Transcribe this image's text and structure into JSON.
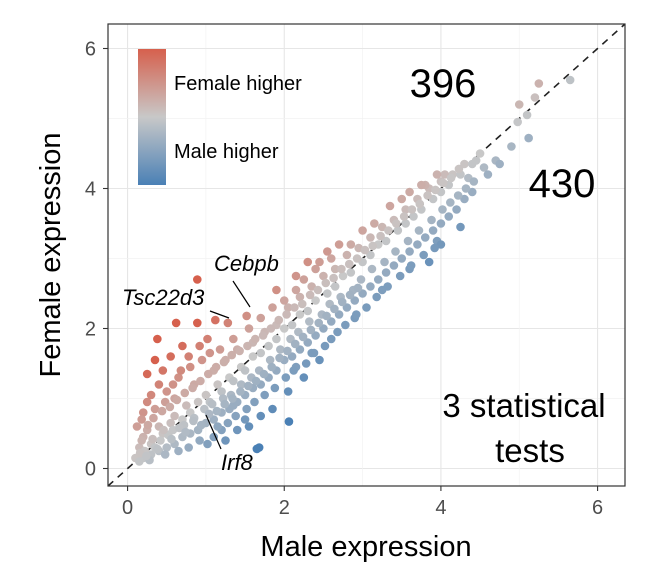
{
  "chart_data": {
    "type": "scatter",
    "title": "",
    "xlabel": "Male expression",
    "ylabel": "Female expression",
    "xlim": [
      -0.25,
      6.35
    ],
    "ylim": [
      -0.25,
      6.35
    ],
    "x_ticks": [
      "0",
      "2",
      "4",
      "6"
    ],
    "y_ticks": [
      "0",
      "2",
      "4",
      "6"
    ],
    "grid": true,
    "reference_line": "y = x (dashed)",
    "legend": {
      "position": "top-left",
      "type": "color-gradient",
      "high_label": "Female higher",
      "low_label": "Male higher",
      "high_color": "#d6604d",
      "mid_color": "#c8c8c8",
      "low_color": "#4a80b5"
    },
    "annotations": {
      "female_higher_count": "396",
      "male_higher_count": "430",
      "note": [
        "3 statistical",
        "tests"
      ]
    },
    "labeled_genes": [
      {
        "name": "Cebpb",
        "x": 1.52,
        "y": 2.18
      },
      {
        "name": "Tsc22d3",
        "x": 1.28,
        "y": 2.08
      },
      {
        "name": "Irf8",
        "x": 1.02,
        "y": 0.75
      }
    ],
    "points": [
      [
        0.89,
        2.7
      ],
      [
        0.62,
        2.08
      ],
      [
        0.89,
        2.08
      ],
      [
        1.12,
        2.12
      ],
      [
        1.52,
        2.18
      ],
      [
        1.28,
        2.08
      ],
      [
        0.38,
        1.85
      ],
      [
        0.35,
        1.55
      ],
      [
        0.25,
        1.35
      ],
      [
        0.45,
        1.4
      ],
      [
        0.55,
        1.6
      ],
      [
        0.7,
        1.75
      ],
      [
        0.3,
        1.05
      ],
      [
        0.5,
        1.1
      ],
      [
        0.65,
        1.3
      ],
      [
        0.8,
        1.45
      ],
      [
        0.95,
        1.55
      ],
      [
        1.05,
        1.65
      ],
      [
        0.2,
        0.8
      ],
      [
        0.35,
        0.85
      ],
      [
        0.6,
        1.0
      ],
      [
        0.85,
        1.2
      ],
      [
        1.1,
        1.4
      ],
      [
        1.25,
        1.55
      ],
      [
        1.4,
        1.7
      ],
      [
        1.6,
        1.8
      ],
      [
        1.75,
        1.95
      ],
      [
        1.9,
        2.05
      ],
      [
        2.05,
        2.3
      ],
      [
        2.2,
        2.45
      ],
      [
        2.35,
        2.6
      ],
      [
        2.5,
        2.75
      ],
      [
        2.65,
        2.85
      ],
      [
        2.8,
        3.05
      ],
      [
        2.95,
        3.15
      ],
      [
        3.1,
        3.3
      ],
      [
        3.25,
        3.45
      ],
      [
        3.4,
        3.55
      ],
      [
        3.55,
        3.7
      ],
      [
        3.7,
        3.85
      ],
      [
        3.85,
        4.0
      ],
      [
        4.0,
        4.1
      ],
      [
        4.15,
        4.2
      ],
      [
        4.3,
        4.35
      ],
      [
        4.45,
        4.4
      ],
      [
        1.9,
        2.55
      ],
      [
        2.15,
        2.75
      ],
      [
        2.4,
        2.85
      ],
      [
        2.7,
        3.2
      ],
      [
        3.0,
        3.4
      ],
      [
        3.35,
        3.75
      ],
      [
        3.6,
        3.95
      ],
      [
        3.8,
        4.05
      ],
      [
        4.05,
        4.2
      ],
      [
        3.95,
        4.2
      ],
      [
        2.3,
        2.95
      ],
      [
        2.55,
        3.1
      ],
      [
        0.15,
        0.3
      ],
      [
        0.2,
        0.45
      ],
      [
        0.25,
        0.55
      ],
      [
        0.3,
        0.35
      ],
      [
        0.4,
        0.6
      ],
      [
        0.45,
        0.5
      ],
      [
        0.55,
        0.65
      ],
      [
        0.6,
        0.75
      ],
      [
        0.7,
        0.7
      ],
      [
        0.75,
        0.9
      ],
      [
        0.8,
        0.8
      ],
      [
        0.9,
        0.95
      ],
      [
        1.0,
        1.05
      ],
      [
        1.05,
        0.95
      ],
      [
        1.15,
        1.2
      ],
      [
        1.2,
        1.1
      ],
      [
        1.3,
        1.3
      ],
      [
        1.35,
        1.25
      ],
      [
        1.45,
        1.45
      ],
      [
        1.5,
        1.4
      ],
      [
        1.6,
        1.6
      ],
      [
        1.7,
        1.65
      ],
      [
        1.8,
        1.75
      ],
      [
        1.9,
        1.85
      ],
      [
        2.0,
        2.0
      ],
      [
        2.1,
        2.05
      ],
      [
        2.2,
        2.2
      ],
      [
        2.3,
        2.25
      ],
      [
        2.4,
        2.4
      ],
      [
        2.55,
        2.5
      ],
      [
        2.65,
        2.6
      ],
      [
        2.75,
        2.75
      ],
      [
        2.85,
        2.8
      ],
      [
        3.0,
        2.95
      ],
      [
        3.1,
        3.05
      ],
      [
        3.2,
        3.2
      ],
      [
        3.3,
        3.25
      ],
      [
        3.45,
        3.4
      ],
      [
        3.55,
        3.5
      ],
      [
        3.65,
        3.6
      ],
      [
        3.75,
        3.7
      ],
      [
        3.9,
        3.85
      ],
      [
        4.0,
        3.95
      ],
      [
        4.1,
        4.05
      ],
      [
        4.25,
        4.2
      ],
      [
        4.4,
        4.35
      ],
      [
        4.55,
        4.3
      ],
      [
        4.7,
        4.4
      ],
      [
        4.35,
        4.15
      ],
      [
        4.6,
        4.2
      ],
      [
        0.2,
        0.15
      ],
      [
        0.3,
        0.2
      ],
      [
        0.4,
        0.25
      ],
      [
        0.5,
        0.3
      ],
      [
        0.6,
        0.35
      ],
      [
        0.7,
        0.45
      ],
      [
        0.8,
        0.5
      ],
      [
        0.9,
        0.55
      ],
      [
        1.0,
        0.65
      ],
      [
        1.1,
        0.7
      ],
      [
        1.2,
        0.8
      ],
      [
        1.3,
        0.85
      ],
      [
        1.4,
        0.95
      ],
      [
        1.5,
        1.05
      ],
      [
        1.6,
        1.15
      ],
      [
        1.7,
        1.2
      ],
      [
        1.8,
        1.3
      ],
      [
        1.9,
        1.4
      ],
      [
        2.0,
        1.55
      ],
      [
        2.1,
        1.6
      ],
      [
        2.2,
        1.7
      ],
      [
        2.3,
        1.8
      ],
      [
        2.4,
        1.9
      ],
      [
        2.5,
        2.0
      ],
      [
        2.6,
        2.1
      ],
      [
        2.7,
        2.2
      ],
      [
        2.8,
        2.3
      ],
      [
        2.9,
        2.4
      ],
      [
        3.0,
        2.5
      ],
      [
        3.1,
        2.6
      ],
      [
        3.2,
        2.7
      ],
      [
        3.3,
        2.8
      ],
      [
        3.4,
        2.9
      ],
      [
        3.5,
        3.0
      ],
      [
        3.6,
        3.1
      ],
      [
        3.7,
        3.2
      ],
      [
        3.8,
        3.3
      ],
      [
        3.9,
        3.4
      ],
      [
        4.0,
        3.5
      ],
      [
        4.1,
        3.6
      ],
      [
        4.2,
        3.7
      ],
      [
        4.3,
        3.85
      ],
      [
        4.4,
        3.95
      ],
      [
        1.1,
        0.45
      ],
      [
        1.25,
        0.4
      ],
      [
        1.4,
        0.55
      ],
      [
        1.55,
        0.6
      ],
      [
        1.7,
        0.75
      ],
      [
        1.85,
        0.85
      ],
      [
        2.05,
        1.1
      ],
      [
        2.25,
        1.3
      ],
      [
        2.45,
        1.55
      ],
      [
        1.65,
        0.28
      ],
      [
        1.68,
        0.3
      ],
      [
        2.06,
        0.67
      ],
      [
        1.35,
        0.9
      ],
      [
        1.5,
        0.7
      ],
      [
        1.2,
        0.55
      ],
      [
        2.15,
        1.45
      ],
      [
        2.35,
        1.65
      ],
      [
        2.6,
        1.85
      ],
      [
        2.9,
        2.15
      ],
      [
        3.25,
        2.55
      ],
      [
        3.6,
        2.85
      ],
      [
        3.95,
        3.25
      ],
      [
        4.25,
        3.45
      ],
      [
        3.85,
        2.95
      ],
      [
        4.0,
        3.2
      ],
      [
        0.12,
        0.6
      ],
      [
        0.18,
        0.7
      ],
      [
        0.25,
        0.95
      ],
      [
        0.4,
        1.2
      ],
      [
        0.48,
        0.95
      ],
      [
        0.58,
        1.2
      ],
      [
        0.68,
        1.4
      ],
      [
        0.78,
        1.6
      ],
      [
        0.92,
        1.75
      ],
      [
        1.02,
        1.85
      ],
      [
        1.18,
        1.7
      ],
      [
        1.35,
        1.85
      ],
      [
        1.55,
        2.0
      ],
      [
        1.7,
        2.15
      ],
      [
        1.85,
        2.3
      ],
      [
        2.0,
        2.4
      ],
      [
        2.15,
        2.55
      ],
      [
        2.25,
        2.7
      ],
      [
        2.45,
        2.95
      ],
      [
        2.6,
        3.0
      ],
      [
        2.85,
        3.2
      ],
      [
        3.15,
        3.5
      ],
      [
        3.5,
        3.85
      ],
      [
        3.75,
        4.05
      ],
      [
        4.5,
        4.5
      ],
      [
        4.75,
        4.35
      ],
      [
        4.9,
        4.6
      ],
      [
        5.0,
        5.2
      ],
      [
        5.1,
        5.05
      ],
      [
        4.98,
        4.95
      ],
      [
        5.12,
        4.72
      ],
      [
        5.25,
        5.5
      ],
      [
        5.65,
        5.55
      ],
      [
        5.2,
        5.3
      ],
      [
        0.1,
        0.15
      ],
      [
        0.15,
        0.1
      ],
      [
        0.22,
        0.25
      ],
      [
        0.28,
        0.12
      ],
      [
        0.35,
        0.3
      ],
      [
        0.42,
        0.4
      ],
      [
        0.48,
        0.2
      ],
      [
        0.52,
        0.48
      ],
      [
        0.58,
        0.55
      ],
      [
        0.65,
        0.25
      ],
      [
        0.72,
        0.62
      ],
      [
        0.78,
        0.3
      ],
      [
        0.85,
        0.72
      ],
      [
        0.92,
        0.4
      ],
      [
        0.98,
        0.85
      ],
      [
        1.02,
        0.35
      ],
      [
        1.08,
        0.92
      ],
      [
        1.15,
        0.6
      ],
      [
        1.22,
        1.0
      ],
      [
        1.28,
        0.65
      ],
      [
        1.32,
        1.05
      ],
      [
        1.38,
        0.75
      ],
      [
        1.45,
        1.2
      ],
      [
        1.52,
        0.85
      ],
      [
        1.58,
        1.3
      ],
      [
        1.62,
        0.95
      ],
      [
        1.68,
        1.4
      ],
      [
        1.75,
        1.05
      ],
      [
        1.82,
        1.55
      ],
      [
        1.88,
        1.15
      ],
      [
        1.95,
        1.7
      ],
      [
        2.02,
        1.3
      ],
      [
        2.08,
        1.85
      ],
      [
        2.12,
        1.4
      ],
      [
        2.18,
        1.95
      ],
      [
        2.28,
        1.5
      ],
      [
        2.32,
        2.1
      ],
      [
        2.38,
        1.65
      ],
      [
        2.48,
        2.2
      ],
      [
        2.52,
        1.75
      ],
      [
        2.58,
        2.35
      ],
      [
        2.68,
        1.95
      ],
      [
        2.72,
        2.45
      ],
      [
        2.78,
        2.05
      ],
      [
        2.88,
        2.55
      ],
      [
        2.92,
        2.2
      ],
      [
        2.98,
        2.7
      ],
      [
        3.05,
        2.3
      ],
      [
        3.12,
        2.85
      ],
      [
        3.18,
        2.45
      ],
      [
        3.28,
        2.95
      ],
      [
        3.32,
        2.6
      ],
      [
        3.42,
        3.1
      ],
      [
        3.48,
        2.75
      ],
      [
        3.58,
        3.25
      ],
      [
        3.62,
        2.9
      ],
      [
        3.72,
        3.4
      ],
      [
        3.78,
        3.05
      ],
      [
        3.88,
        3.55
      ],
      [
        3.92,
        3.15
      ],
      [
        4.02,
        3.7
      ],
      [
        4.12,
        3.8
      ],
      [
        4.22,
        3.9
      ],
      [
        4.32,
        4.0
      ],
      [
        4.42,
        4.1
      ],
      [
        0.18,
        0.4
      ],
      [
        0.26,
        0.62
      ],
      [
        0.33,
        0.72
      ],
      [
        0.44,
        0.82
      ],
      [
        0.54,
        0.88
      ],
      [
        0.63,
        0.98
      ],
      [
        0.73,
        1.08
      ],
      [
        0.83,
        1.15
      ],
      [
        0.93,
        1.25
      ],
      [
        1.03,
        1.35
      ],
      [
        1.13,
        1.45
      ],
      [
        1.23,
        1.52
      ],
      [
        1.33,
        1.62
      ],
      [
        1.43,
        1.68
      ],
      [
        1.53,
        1.75
      ],
      [
        1.63,
        1.85
      ],
      [
        1.73,
        1.9
      ],
      [
        1.83,
        2.0
      ],
      [
        1.93,
        2.12
      ],
      [
        2.03,
        2.2
      ],
      [
        2.13,
        2.3
      ],
      [
        2.23,
        2.35
      ],
      [
        2.33,
        2.48
      ],
      [
        2.43,
        2.55
      ],
      [
        2.53,
        2.65
      ],
      [
        2.63,
        2.72
      ],
      [
        2.73,
        2.85
      ],
      [
        2.83,
        2.92
      ],
      [
        2.93,
        3.0
      ],
      [
        3.03,
        3.12
      ],
      [
        3.13,
        3.18
      ],
      [
        3.23,
        3.32
      ],
      [
        3.33,
        3.4
      ],
      [
        3.43,
        3.5
      ],
      [
        3.53,
        3.6
      ],
      [
        3.63,
        3.7
      ],
      [
        3.73,
        3.78
      ],
      [
        3.83,
        3.9
      ],
      [
        3.93,
        3.98
      ],
      [
        4.03,
        4.08
      ],
      [
        4.13,
        4.15
      ],
      [
        4.23,
        4.28
      ],
      [
        0.16,
        0.22
      ],
      [
        0.24,
        0.18
      ],
      [
        0.32,
        0.42
      ],
      [
        0.38,
        0.28
      ],
      [
        0.46,
        0.55
      ],
      [
        0.56,
        0.42
      ],
      [
        0.66,
        0.58
      ],
      [
        0.74,
        0.52
      ],
      [
        0.84,
        0.68
      ],
      [
        0.94,
        0.62
      ],
      [
        1.04,
        0.78
      ],
      [
        1.14,
        0.82
      ],
      [
        1.24,
        0.92
      ],
      [
        1.34,
        1.0
      ],
      [
        1.44,
        1.1
      ],
      [
        1.54,
        1.18
      ],
      [
        1.64,
        1.25
      ],
      [
        1.74,
        1.35
      ],
      [
        1.84,
        1.45
      ],
      [
        1.94,
        1.58
      ],
      [
        2.04,
        1.68
      ],
      [
        2.14,
        1.78
      ],
      [
        2.24,
        1.88
      ],
      [
        2.34,
        1.98
      ],
      [
        2.44,
        2.08
      ],
      [
        2.54,
        2.18
      ],
      [
        2.64,
        2.28
      ],
      [
        2.74,
        2.38
      ],
      [
        2.84,
        2.48
      ],
      [
        2.94,
        2.58
      ]
    ]
  }
}
